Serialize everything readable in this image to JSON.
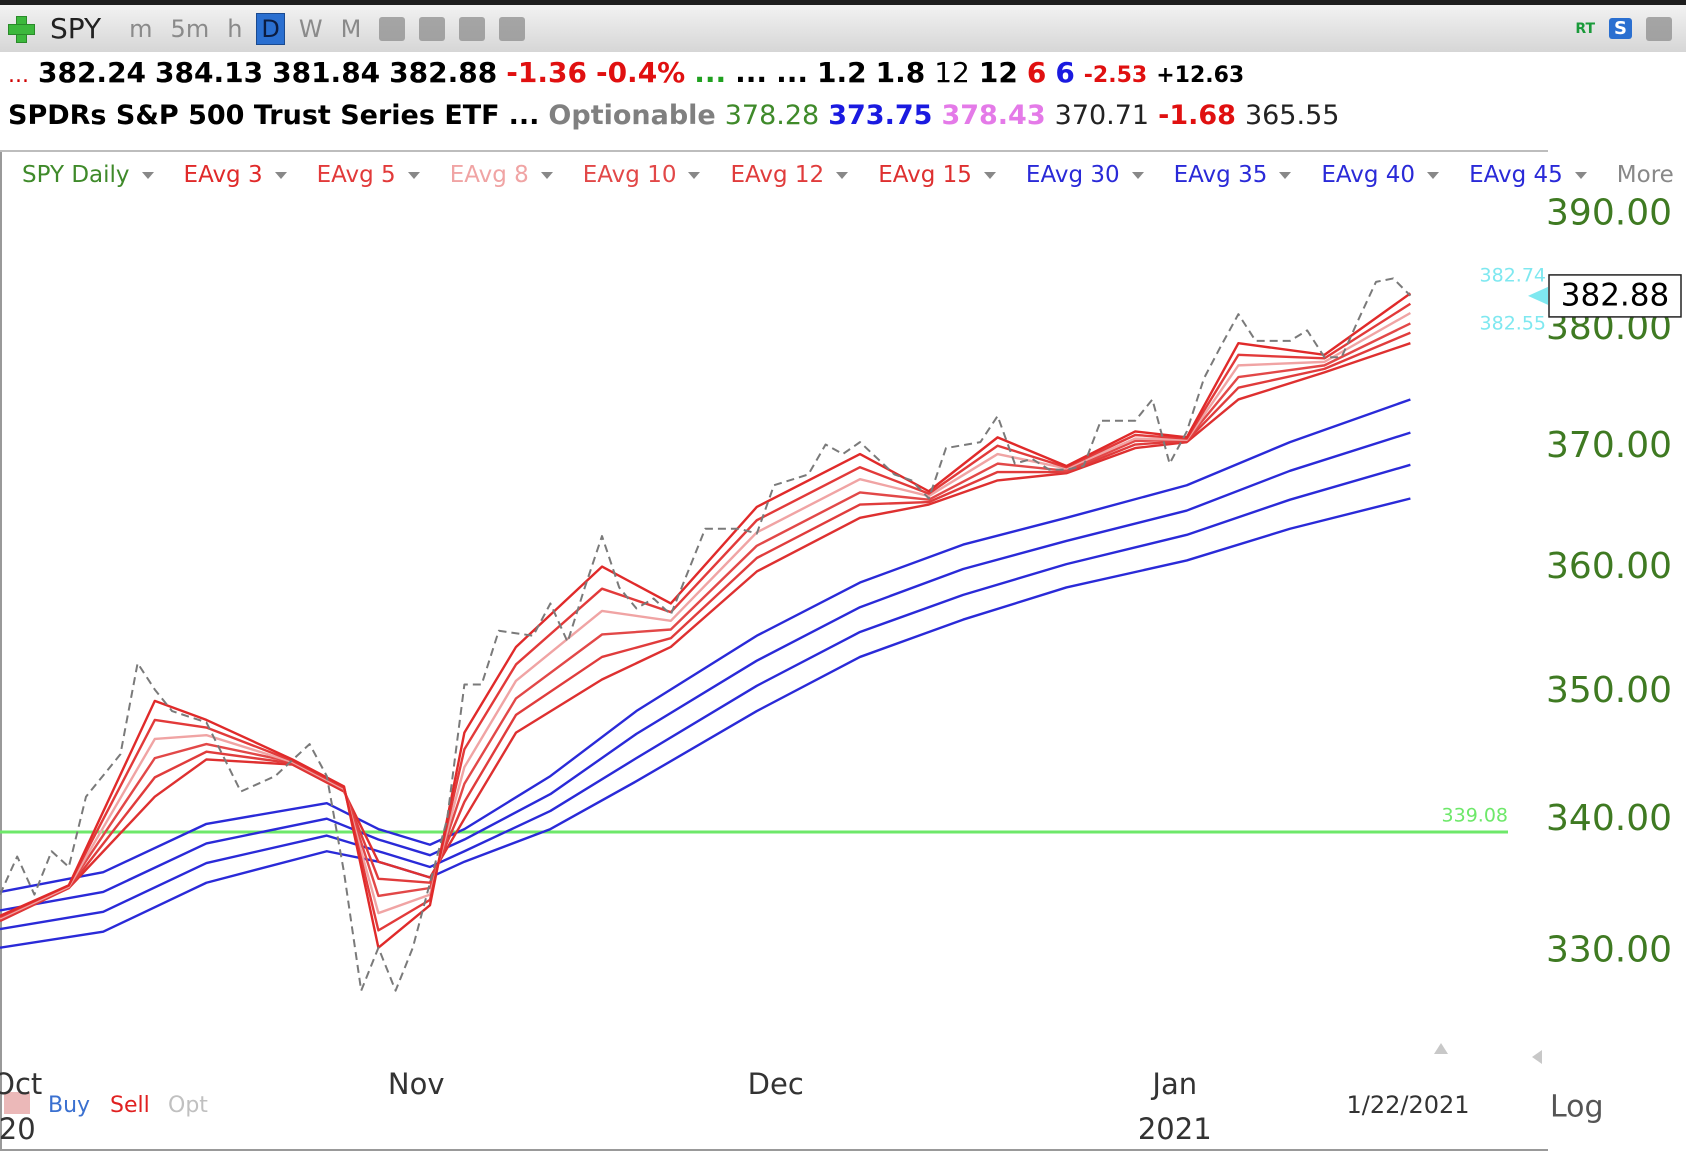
{
  "toolbar": {
    "symbol": "SPY",
    "timeframes": [
      "m",
      "5m",
      "h",
      "D",
      "W",
      "M"
    ],
    "selected": 3,
    "rt": "RT",
    "s": "S"
  },
  "quote_row": [
    {
      "text": "...",
      "color": "#d00000",
      "small": true
    },
    {
      "text": "382.24",
      "color": "#000000",
      "bold": true
    },
    {
      "text": "384.13",
      "color": "#000000",
      "bold": true
    },
    {
      "text": "381.84",
      "color": "#000000",
      "bold": true
    },
    {
      "text": "382.88",
      "color": "#000000",
      "bold": true
    },
    {
      "text": "-1.36",
      "color": "#e01010",
      "bold": true
    },
    {
      "text": "-0.4%",
      "color": "#e01010",
      "bold": true
    },
    {
      "text": "...",
      "color": "#20a020",
      "bold": true
    },
    {
      "text": "...",
      "color": "#000000",
      "bold": true
    },
    {
      "text": "...",
      "color": "#000000",
      "bold": true
    },
    {
      "text": "1.2",
      "color": "#000000",
      "bold": true
    },
    {
      "text": "1.8",
      "color": "#000000",
      "bold": true
    },
    {
      "text": "12",
      "color": "#000000"
    },
    {
      "text": "12",
      "color": "#000000",
      "bold": true
    },
    {
      "text": "6",
      "color": "#e01010",
      "bold": true
    },
    {
      "text": "6",
      "color": "#1a1ae0",
      "bold": true
    },
    {
      "text": "-2.53",
      "color": "#e01010",
      "bold": true,
      "small": true
    },
    {
      "text": "+12.63",
      "color": "#000000",
      "bold": true,
      "small": true
    }
  ],
  "info_row": [
    {
      "text": "SPDRs S&P 500 Trust Series ETF",
      "color": "#000000",
      "bold": true
    },
    {
      "text": "...",
      "color": "#000000",
      "bold": true
    },
    {
      "text": "Optionable",
      "color": "#808080",
      "bold": true
    },
    {
      "text": "378.28",
      "color": "#3f8a2a"
    },
    {
      "text": "373.75",
      "color": "#1a1ae0",
      "bold": true
    },
    {
      "text": "378.43",
      "color": "#e47ae8",
      "bold": true
    },
    {
      "text": "370.71",
      "color": "#222222"
    },
    {
      "text": "-1.68",
      "color": "#e01010",
      "bold": true
    },
    {
      "text": "365.55",
      "color": "#222222"
    }
  ],
  "chart_data": {
    "type": "line",
    "log_scale": true,
    "xlim": [
      0,
      90
    ],
    "ylim": [
      322,
      394.5
    ],
    "yticks": [
      {
        "value": 330,
        "label": "330.00"
      },
      {
        "value": 340,
        "label": "340.00"
      },
      {
        "value": 350,
        "label": "350.00"
      },
      {
        "value": 360,
        "label": "360.00"
      },
      {
        "value": 370,
        "label": "370.00"
      },
      {
        "value": 380,
        "label": "380.00"
      },
      {
        "value": 390,
        "label": "390.00"
      }
    ],
    "xticks": [
      {
        "value": 1,
        "label": "Oct"
      },
      {
        "value": 24.2,
        "label": "Nov"
      },
      {
        "value": 45.1,
        "label": "Dec"
      },
      {
        "value": 68.3,
        "label": "Jan"
      }
    ],
    "year_labels": [
      {
        "value": 1,
        "label": "20"
      },
      {
        "value": 68.3,
        "label": "2021"
      }
    ],
    "date_label": "1/22/2021",
    "legend_more": "More",
    "hline": {
      "value": 339.08,
      "color": "#6ee86a"
    },
    "last_price": 382.88,
    "upper_label": 382.74,
    "lower_label": 382.55,
    "marker_color": "#7fe8f0",
    "series": [
      {
        "name": "SPY Daily",
        "color": "#7a7a7a",
        "legend_color": "#3f8a2a",
        "dash": true,
        "x": [
          0,
          1,
          2,
          3,
          4,
          5,
          7,
          8,
          9,
          10,
          12,
          14,
          16,
          18,
          19,
          20,
          21,
          22,
          23,
          24,
          25,
          26,
          27,
          28,
          29,
          31,
          32,
          33,
          34,
          35,
          36,
          37,
          38,
          39,
          41,
          43,
          44,
          45,
          47,
          48,
          49,
          50,
          52,
          53,
          54,
          55,
          57,
          58,
          59,
          60,
          61,
          62,
          63,
          64,
          66,
          67,
          68,
          69,
          70,
          71,
          72,
          73,
          75,
          76,
          77,
          78,
          79,
          80,
          81,
          82
        ],
        "values": [
          334.3,
          337.2,
          334.3,
          337.6,
          336.4,
          341.8,
          345.1,
          352.3,
          350.2,
          348.5,
          347.6,
          342.2,
          343.4,
          345.9,
          343.4,
          336.0,
          327.1,
          330.3,
          327.1,
          330.3,
          335.2,
          340.1,
          350.6,
          350.6,
          354.9,
          354.5,
          357.1,
          354.0,
          358.4,
          362.6,
          358.4,
          356.7,
          357.5,
          356.2,
          363.2,
          363.2,
          362.8,
          366.8,
          367.7,
          370.2,
          369.4,
          370.4,
          367.7,
          367.2,
          365.7,
          369.9,
          370.4,
          372.6,
          368.6,
          369.0,
          368.1,
          368.1,
          368.4,
          372.2,
          372.2,
          374.0,
          368.6,
          371.3,
          375.8,
          378.6,
          381.3,
          379.0,
          379.0,
          379.9,
          377.6,
          377.6,
          380.9,
          384.1,
          384.4,
          382.9
        ]
      },
      {
        "name": "EAvg 3",
        "color": "#e02a2a",
        "x": [
          0,
          4,
          9,
          12,
          17,
          20,
          22,
          25,
          27,
          30,
          35,
          39,
          44,
          50,
          54,
          58,
          62,
          66,
          69,
          72,
          77,
          82
        ],
        "values": [
          332.7,
          335.0,
          349.3,
          347.8,
          344.7,
          342.6,
          330.3,
          333.5,
          346.8,
          353.6,
          360.1,
          357.1,
          365.0,
          369.4,
          366.3,
          370.8,
          368.4,
          371.3,
          370.8,
          378.8,
          377.8,
          383.1
        ]
      },
      {
        "name": "EAvg 5",
        "color": "#e23a3a",
        "x": [
          0,
          4,
          9,
          12,
          17,
          20,
          22,
          25,
          27,
          30,
          35,
          39,
          44,
          50,
          54,
          58,
          62,
          66,
          69,
          72,
          77,
          82
        ],
        "values": [
          332.6,
          335.0,
          347.8,
          347.2,
          344.6,
          342.5,
          331.6,
          333.9,
          345.5,
          352.2,
          358.3,
          356.4,
          363.9,
          368.3,
          366.1,
          370.1,
          368.3,
          371.0,
          370.7,
          377.8,
          377.5,
          382.2
        ]
      },
      {
        "name": "EAvg 8",
        "color": "#f0a4a4",
        "x": [
          0,
          4,
          9,
          12,
          17,
          20,
          22,
          25,
          27,
          30,
          35,
          39,
          44,
          50,
          54,
          58,
          62,
          66,
          69,
          72,
          77,
          82
        ],
        "values": [
          332.5,
          334.9,
          346.3,
          346.6,
          344.5,
          342.4,
          332.9,
          334.3,
          344.1,
          350.9,
          356.5,
          355.7,
          362.9,
          367.3,
          365.9,
          369.4,
          368.2,
          370.7,
          370.6,
          376.9,
          377.2,
          381.4
        ]
      },
      {
        "name": "EAvg 10",
        "color": "#e24848",
        "x": [
          0,
          4,
          9,
          12,
          17,
          20,
          22,
          25,
          27,
          30,
          35,
          39,
          44,
          50,
          54,
          58,
          62,
          66,
          69,
          72,
          77,
          82
        ],
        "values": [
          332.5,
          334.9,
          344.8,
          345.9,
          344.5,
          342.4,
          334.2,
          334.8,
          342.8,
          349.5,
          354.6,
          355.0,
          361.8,
          366.2,
          365.6,
          368.6,
          368.0,
          370.5,
          370.6,
          375.9,
          376.9,
          380.5
        ]
      },
      {
        "name": "EAvg 12",
        "color": "#e03c3c",
        "x": [
          0,
          4,
          9,
          12,
          17,
          20,
          22,
          25,
          27,
          30,
          35,
          39,
          44,
          50,
          54,
          58,
          62,
          66,
          69,
          72,
          77,
          82
        ],
        "values": [
          332.4,
          334.8,
          343.3,
          345.3,
          344.4,
          342.3,
          335.5,
          335.2,
          341.4,
          348.2,
          352.8,
          354.3,
          360.8,
          365.2,
          365.4,
          367.9,
          367.9,
          370.2,
          370.5,
          375.0,
          376.6,
          379.7
        ]
      },
      {
        "name": "EAvg 15",
        "color": "#de3030",
        "x": [
          0,
          4,
          9,
          12,
          17,
          20,
          22,
          25,
          27,
          30,
          35,
          39,
          44,
          50,
          54,
          58,
          62,
          66,
          69,
          72,
          77,
          82
        ],
        "values": [
          332.3,
          334.8,
          341.8,
          344.7,
          344.3,
          342.2,
          336.8,
          335.6,
          340.1,
          346.8,
          351.0,
          353.6,
          359.7,
          364.1,
          365.2,
          367.2,
          367.8,
          369.9,
          370.4,
          374.0,
          376.3,
          378.8
        ]
      },
      {
        "name": "EAvg 30",
        "color": "#2a2ad8",
        "x": [
          0,
          6,
          12,
          19,
          22,
          25,
          27,
          32,
          37,
          44,
          50,
          56,
          62,
          69,
          75,
          82
        ],
        "values": [
          334.5,
          336.0,
          339.7,
          341.3,
          339.3,
          338.1,
          339.3,
          343.4,
          348.5,
          354.5,
          358.8,
          361.9,
          364.1,
          366.8,
          370.4,
          374.0
        ]
      },
      {
        "name": "EAvg 35",
        "color": "#2a2ad8",
        "x": [
          0,
          6,
          12,
          19,
          22,
          25,
          27,
          32,
          37,
          44,
          50,
          56,
          62,
          69,
          75,
          82
        ],
        "values": [
          333.1,
          334.5,
          338.2,
          340.1,
          338.5,
          337.3,
          338.5,
          342.0,
          346.7,
          352.5,
          356.8,
          359.9,
          362.2,
          364.7,
          368.0,
          371.2
        ]
      },
      {
        "name": "EAvg 40",
        "color": "#2a2ad8",
        "x": [
          0,
          6,
          12,
          19,
          22,
          25,
          27,
          32,
          37,
          44,
          50,
          56,
          62,
          69,
          75,
          82
        ],
        "values": [
          331.7,
          333.0,
          336.7,
          338.8,
          337.6,
          336.4,
          337.6,
          340.7,
          344.8,
          350.5,
          354.8,
          357.8,
          360.3,
          362.7,
          365.6,
          368.5
        ]
      },
      {
        "name": "EAvg 45",
        "color": "#2a2ad8",
        "x": [
          0,
          6,
          12,
          19,
          22,
          25,
          27,
          32,
          37,
          44,
          50,
          56,
          62,
          69,
          75,
          82
        ],
        "values": [
          330.3,
          331.5,
          335.2,
          337.6,
          336.8,
          335.6,
          336.8,
          339.3,
          343.0,
          348.5,
          352.8,
          355.8,
          358.4,
          360.6,
          363.2,
          365.7
        ]
      }
    ]
  },
  "footer": {
    "buy": "Buy",
    "sell": "Sell",
    "opt": "Opt",
    "log": "Log"
  }
}
